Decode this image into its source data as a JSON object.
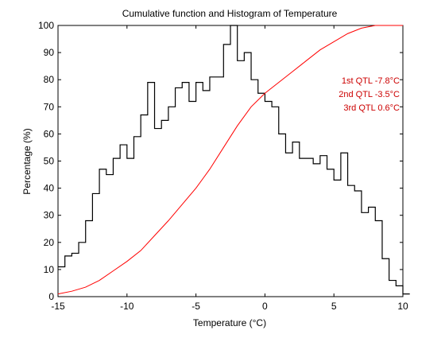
{
  "chart_data": {
    "type": "line",
    "title": "Cumulative function and Histogram of Temperature",
    "xlabel": "Temperature (°C)",
    "ylabel": "Percentage (%)",
    "xlim": [
      -15,
      10
    ],
    "ylim": [
      0,
      100
    ],
    "xticks": [
      -15,
      -10,
      -5,
      0,
      5,
      10
    ],
    "yticks": [
      0,
      10,
      20,
      30,
      40,
      50,
      60,
      70,
      80,
      90,
      100
    ],
    "xtick_labels": [
      "-15",
      "-10",
      "-5",
      "0",
      "5",
      "10"
    ],
    "ytick_labels": [
      "0",
      "10",
      "20",
      "30",
      "40",
      "50",
      "60",
      "70",
      "80",
      "90",
      "100"
    ],
    "grid": false,
    "series": [
      {
        "kind": "histogram-stairs",
        "color": "#000000",
        "bin_start": -15,
        "bin_width": 0.5,
        "values": [
          11,
          15,
          16,
          20,
          28,
          38,
          47,
          45,
          51,
          56,
          51,
          59,
          67,
          79,
          62,
          65,
          70,
          77,
          79,
          72,
          79,
          76,
          81,
          81,
          93,
          100,
          87,
          90,
          80,
          75,
          72,
          70,
          60,
          53,
          57,
          51,
          51,
          49,
          52,
          47,
          43,
          53,
          41,
          39,
          31,
          33,
          28,
          14,
          6,
          4,
          1
        ]
      },
      {
        "kind": "cumulative-line",
        "color": "#ff0000",
        "x": [
          -15,
          -14,
          -13,
          -12,
          -11,
          -10,
          -9,
          -8,
          -7,
          -6,
          -5,
          -4,
          -3,
          -2,
          -1,
          0,
          1,
          2,
          3,
          4,
          5,
          6,
          7,
          8,
          9,
          10
        ],
        "values": [
          1,
          2,
          3.5,
          6,
          9.5,
          13,
          17,
          22.5,
          28,
          34,
          40,
          47,
          55,
          63,
          70,
          75,
          79,
          83,
          87,
          91,
          94,
          97,
          99,
          100,
          100,
          100
        ]
      }
    ],
    "annotations": [
      {
        "text": "1st QTL -7.8°C",
        "color": "#cc0000"
      },
      {
        "text": "2nd QTL -3.5°C",
        "color": "#cc0000"
      },
      {
        "text": "3rd QTL  0.6°C",
        "color": "#cc0000"
      }
    ]
  }
}
